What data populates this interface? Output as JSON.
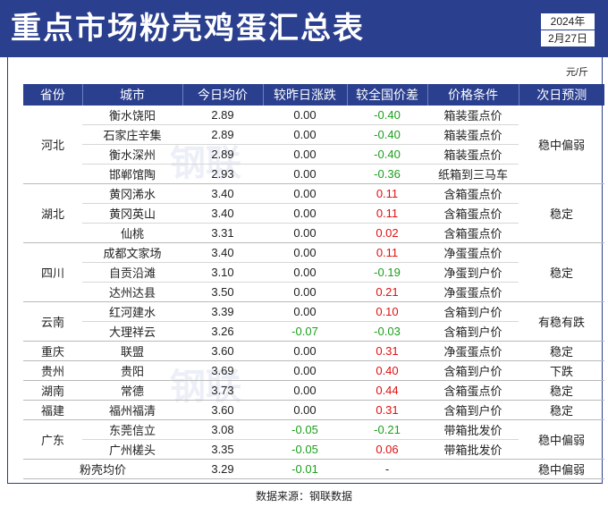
{
  "header": {
    "title": "重点市场粉壳鸡蛋汇总表",
    "year": "2024年",
    "date": "2月27日"
  },
  "unit": "元/斤",
  "columns": [
    "省份",
    "城市",
    "今日均价",
    "较昨日涨跌",
    "较全国价差",
    "价格条件",
    "次日预测"
  ],
  "groups": [
    {
      "province": "河北",
      "forecast": "稳中偏弱",
      "rows": [
        {
          "city": "衡水饶阳",
          "price": "2.89",
          "change": "0.00",
          "diff": "-0.40",
          "condition": "箱装蛋点价"
        },
        {
          "city": "石家庄辛集",
          "price": "2.89",
          "change": "0.00",
          "diff": "-0.40",
          "condition": "箱装蛋点价"
        },
        {
          "city": "衡水深州",
          "price": "2.89",
          "change": "0.00",
          "diff": "-0.40",
          "condition": "箱装蛋点价"
        },
        {
          "city": "邯郸馆陶",
          "price": "2.93",
          "change": "0.00",
          "diff": "-0.36",
          "condition": "纸箱到三马车"
        }
      ]
    },
    {
      "province": "湖北",
      "forecast": "稳定",
      "rows": [
        {
          "city": "黄冈浠水",
          "price": "3.40",
          "change": "0.00",
          "diff": "0.11",
          "condition": "含箱蛋点价"
        },
        {
          "city": "黄冈英山",
          "price": "3.40",
          "change": "0.00",
          "diff": "0.11",
          "condition": "含箱蛋点价"
        },
        {
          "city": "仙桃",
          "price": "3.31",
          "change": "0.00",
          "diff": "0.02",
          "condition": "含箱蛋点价"
        }
      ]
    },
    {
      "province": "四川",
      "forecast": "稳定",
      "rows": [
        {
          "city": "成都文家场",
          "price": "3.40",
          "change": "0.00",
          "diff": "0.11",
          "condition": "净蛋蛋点价"
        },
        {
          "city": "自贡沿滩",
          "price": "3.10",
          "change": "0.00",
          "diff": "-0.19",
          "condition": "净蛋到户价"
        },
        {
          "city": "达州达县",
          "price": "3.50",
          "change": "0.00",
          "diff": "0.21",
          "condition": "净蛋蛋点价"
        }
      ]
    },
    {
      "province": "云南",
      "forecast": "有稳有跌",
      "rows": [
        {
          "city": "红河建水",
          "price": "3.39",
          "change": "0.00",
          "diff": "0.10",
          "condition": "含箱到户价"
        },
        {
          "city": "大理祥云",
          "price": "3.26",
          "change": "-0.07",
          "diff": "-0.03",
          "condition": "含箱到户价"
        }
      ]
    },
    {
      "province": "重庆",
      "forecast": "稳定",
      "rows": [
        {
          "city": "联盟",
          "price": "3.60",
          "change": "0.00",
          "diff": "0.31",
          "condition": "净蛋蛋点价"
        }
      ]
    },
    {
      "province": "贵州",
      "forecast": "下跌",
      "rows": [
        {
          "city": "贵阳",
          "price": "3.69",
          "change": "0.00",
          "diff": "0.40",
          "condition": "含箱到户价"
        }
      ]
    },
    {
      "province": "湖南",
      "forecast": "稳定",
      "rows": [
        {
          "city": "常德",
          "price": "3.73",
          "change": "0.00",
          "diff": "0.44",
          "condition": "含箱蛋点价"
        }
      ]
    },
    {
      "province": "福建",
      "forecast": "稳定",
      "rows": [
        {
          "city": "福州福清",
          "price": "3.60",
          "change": "0.00",
          "diff": "0.31",
          "condition": "含箱到户价"
        }
      ]
    },
    {
      "province": "广东",
      "forecast": "稳中偏弱",
      "rows": [
        {
          "city": "东莞信立",
          "price": "3.08",
          "change": "-0.05",
          "diff": "-0.21",
          "condition": "带箱批发价"
        },
        {
          "city": "广州槎头",
          "price": "3.35",
          "change": "-0.05",
          "diff": "0.06",
          "condition": "带箱批发价"
        }
      ]
    }
  ],
  "summary": {
    "label": "粉壳均价",
    "price": "3.29",
    "change": "-0.01",
    "diff": "-",
    "forecast": "稳中偏弱"
  },
  "source": "数据来源：钢联数据",
  "colors": {
    "header": "#2a3f8e",
    "up": "#e01010",
    "down": "#1aa01a"
  }
}
